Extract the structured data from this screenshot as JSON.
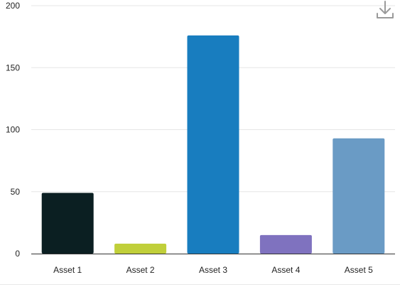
{
  "chart_data": {
    "type": "bar",
    "categories": [
      "Asset 1",
      "Asset 2",
      "Asset 3",
      "Asset 4",
      "Asset 5"
    ],
    "values": [
      49,
      8,
      176,
      15,
      93
    ],
    "colors": [
      "#0b1f22",
      "#c0cf3a",
      "#187dbf",
      "#7f72bf",
      "#6a9bc5"
    ],
    "ylim": [
      0,
      200
    ],
    "yticks": [
      0,
      50,
      100,
      150,
      200
    ],
    "grid": true,
    "legend": "none",
    "title": "",
    "xlabel": "",
    "ylabel": ""
  },
  "toolbar": {
    "download_icon": "download-icon"
  }
}
